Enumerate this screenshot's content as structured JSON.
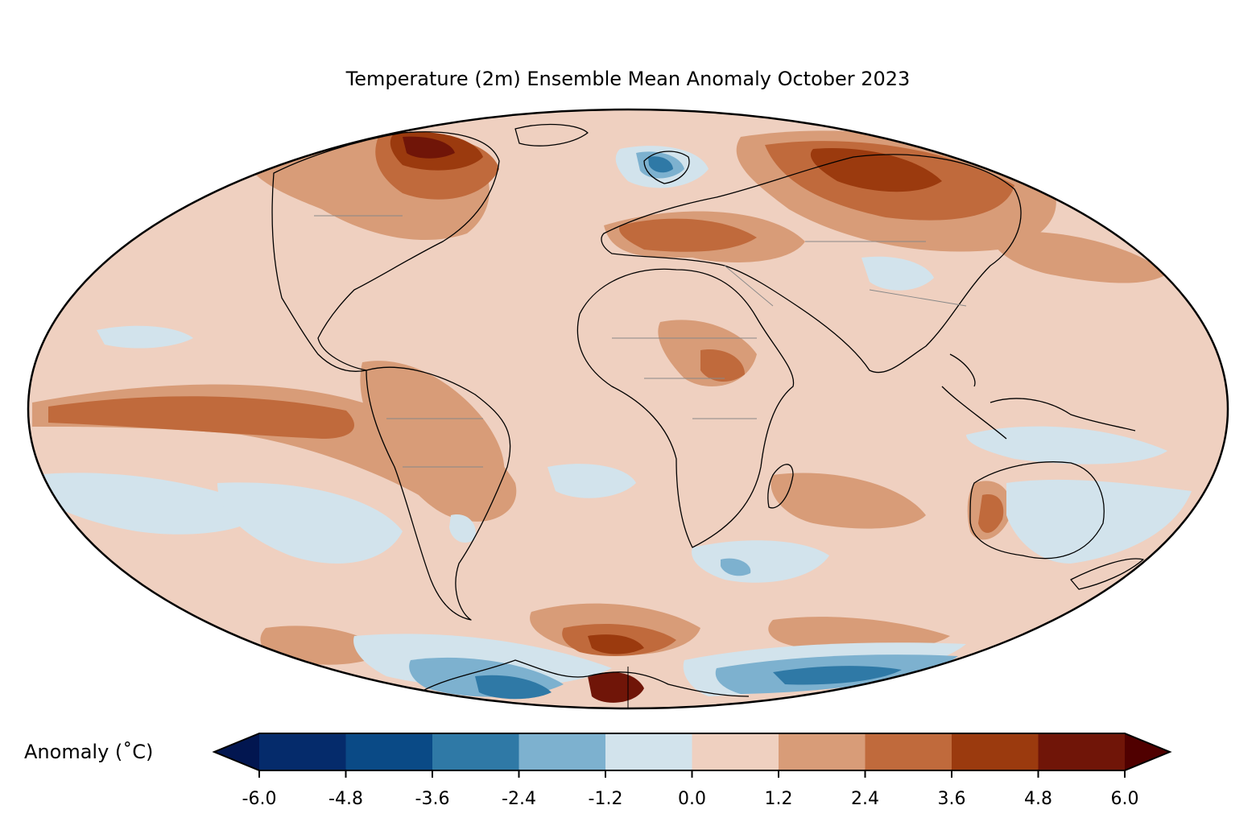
{
  "title": "Temperature (2m) Ensemble Mean Anomaly October 2023",
  "projection": "Mollweide",
  "colorbar": {
    "label": "Anomaly (˚C)",
    "levels": [
      -6.0,
      -4.8,
      -3.6,
      -2.4,
      -1.2,
      0.0,
      1.2,
      2.4,
      3.6,
      4.8,
      6.0
    ],
    "tick_labels": [
      "-6.0",
      "-4.8",
      "-3.6",
      "-2.4",
      "-1.2",
      "0.0",
      "1.2",
      "2.4",
      "3.6",
      "4.8",
      "6.0"
    ],
    "colors": [
      "#052b6b",
      "#0a4a86",
      "#2f79a6",
      "#7db1cf",
      "#d2e3ec",
      "#efd0c0",
      "#d89c78",
      "#c06a3c",
      "#9b3a0e",
      "#701508"
    ],
    "under_color": "#021650",
    "over_color": "#500000",
    "extend": "both"
  },
  "map_colors": {
    "land_outline": "#000000",
    "border_outline": "#888888"
  }
}
